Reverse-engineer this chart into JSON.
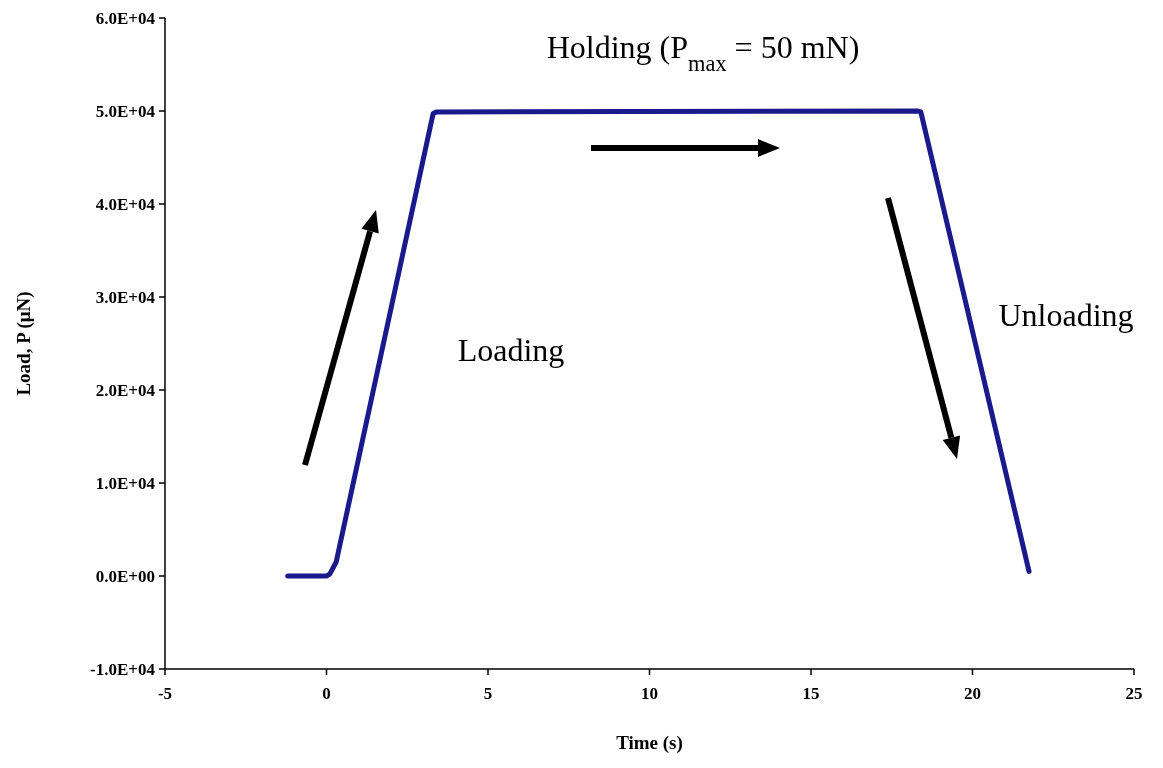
{
  "chart_data": {
    "type": "line",
    "xlabel": "Time (s)",
    "ylabel": "Load, P (μN)",
    "annotations": [
      "Holding (P$_{max}$ = 50 mN)",
      "Loading",
      "Unloading"
    ],
    "x": [
      -1.2,
      0,
      0.1,
      0.3,
      3.3,
      3.4,
      18.3,
      18.4,
      21.75
    ],
    "series": [
      {
        "color": "#1a1a8c",
        "values": [
          0,
          0,
          200,
          1500,
          49700,
          49900,
          50000,
          49900,
          500
        ]
      }
    ],
    "xlim": [
      -5,
      25
    ],
    "xticks": [
      -5,
      0,
      5,
      10,
      15,
      20,
      25
    ],
    "ylim": [
      -10000,
      60000
    ],
    "yticks": [
      {
        "value": -10000,
        "label": "-1.0E+04"
      },
      {
        "value": 0,
        "label": "0.0E+00"
      },
      {
        "value": 10000,
        "label": "1.0E+04"
      },
      {
        "value": 20000,
        "label": "2.0E+04"
      },
      {
        "value": 30000,
        "label": "3.0E+04"
      },
      {
        "value": 40000,
        "label": "4.0E+04"
      },
      {
        "value": 50000,
        "label": "5.0E+04"
      },
      {
        "value": 60000,
        "label": "6.0E+04"
      }
    ],
    "marker": "none",
    "line_style": "solid"
  }
}
